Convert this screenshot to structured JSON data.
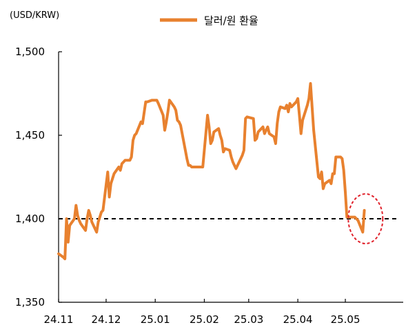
{
  "chart_data": {
    "type": "line",
    "unit_label": "(USD/KRW)",
    "legend_position": "top-center",
    "series": [
      {
        "name": "달러/원 환율",
        "color": "#E8812F",
        "points": [
          [
            "24.11.01",
            1379
          ],
          [
            "24.11.04",
            1377
          ],
          [
            "24.11.05",
            1376
          ],
          [
            "24.11.06",
            1400
          ],
          [
            "24.11.07",
            1386
          ],
          [
            "24.11.08",
            1396
          ],
          [
            "24.11.11",
            1400
          ],
          [
            "24.11.12",
            1408
          ],
          [
            "24.11.13",
            1402
          ],
          [
            "24.11.14",
            1399
          ],
          [
            "24.11.15",
            1397
          ],
          [
            "24.11.18",
            1393
          ],
          [
            "24.11.19",
            1400
          ],
          [
            "24.11.20",
            1405
          ],
          [
            "24.11.21",
            1402
          ],
          [
            "24.11.22",
            1398
          ],
          [
            "24.11.25",
            1392
          ],
          [
            "24.11.26",
            1398
          ],
          [
            "24.11.27",
            1401
          ],
          [
            "24.11.28",
            1404
          ],
          [
            "24.11.29",
            1405
          ],
          [
            "24.12.02",
            1428
          ],
          [
            "24.12.03",
            1413
          ],
          [
            "24.12.04",
            1421
          ],
          [
            "24.12.05",
            1424
          ],
          [
            "24.12.06",
            1427
          ],
          [
            "24.12.09",
            1431
          ],
          [
            "24.12.10",
            1429
          ],
          [
            "24.12.11",
            1433
          ],
          [
            "24.12.12",
            1434
          ],
          [
            "24.12.13",
            1435
          ],
          [
            "24.12.16",
            1435
          ],
          [
            "24.12.17",
            1437
          ],
          [
            "24.12.18",
            1447
          ],
          [
            "24.12.19",
            1450
          ],
          [
            "24.12.20",
            1451
          ],
          [
            "24.12.23",
            1458
          ],
          [
            "24.12.24",
            1457
          ],
          [
            "24.12.26",
            1470
          ],
          [
            "24.12.27",
            1470
          ],
          [
            "24.12.30",
            1471
          ],
          [
            "25.01.02",
            1471
          ],
          [
            "25.01.03",
            1469
          ],
          [
            "25.01.06",
            1462
          ],
          [
            "25.01.07",
            1453
          ],
          [
            "25.01.08",
            1458
          ],
          [
            "25.01.09",
            1464
          ],
          [
            "25.01.10",
            1471
          ],
          [
            "25.01.13",
            1467
          ],
          [
            "25.01.14",
            1465
          ],
          [
            "25.01.15",
            1459
          ],
          [
            "25.01.16",
            1458
          ],
          [
            "25.01.17",
            1456
          ],
          [
            "25.01.20",
            1441
          ],
          [
            "25.01.21",
            1436
          ],
          [
            "25.01.22",
            1432
          ],
          [
            "25.01.23",
            1432
          ],
          [
            "25.01.24",
            1431
          ],
          [
            "25.01.31",
            1431
          ],
          [
            "25.02.03",
            1462
          ],
          [
            "25.02.04",
            1455
          ],
          [
            "25.02.05",
            1445
          ],
          [
            "25.02.06",
            1447
          ],
          [
            "25.02.07",
            1452
          ],
          [
            "25.02.10",
            1454
          ],
          [
            "25.02.11",
            1450
          ],
          [
            "25.02.12",
            1447
          ],
          [
            "25.02.13",
            1440
          ],
          [
            "25.02.14",
            1442
          ],
          [
            "25.02.17",
            1441
          ],
          [
            "25.02.18",
            1437
          ],
          [
            "25.02.19",
            1434
          ],
          [
            "25.02.20",
            1432
          ],
          [
            "25.02.21",
            1430
          ],
          [
            "25.02.24",
            1436
          ],
          [
            "25.02.25",
            1438
          ],
          [
            "25.02.26",
            1441
          ],
          [
            "25.02.27",
            1460
          ],
          [
            "25.02.28",
            1461
          ],
          [
            "25.03.04",
            1460
          ],
          [
            "25.03.05",
            1447
          ],
          [
            "25.03.06",
            1448
          ],
          [
            "25.03.07",
            1452
          ],
          [
            "25.03.10",
            1455
          ],
          [
            "25.03.11",
            1451
          ],
          [
            "25.03.12",
            1453
          ],
          [
            "25.03.13",
            1455
          ],
          [
            "25.03.14",
            1451
          ],
          [
            "25.03.17",
            1449
          ],
          [
            "25.03.18",
            1445
          ],
          [
            "25.03.19",
            1457
          ],
          [
            "25.03.20",
            1464
          ],
          [
            "25.03.21",
            1467
          ],
          [
            "25.03.24",
            1466
          ],
          [
            "25.03.25",
            1468
          ],
          [
            "25.03.26",
            1464
          ],
          [
            "25.03.27",
            1469
          ],
          [
            "25.03.28",
            1467
          ],
          [
            "25.03.31",
            1470
          ],
          [
            "25.04.01",
            1472
          ],
          [
            "25.04.02",
            1462
          ],
          [
            "25.04.03",
            1451
          ],
          [
            "25.04.04",
            1459
          ],
          [
            "25.04.07",
            1468
          ],
          [
            "25.04.08",
            1472
          ],
          [
            "25.04.09",
            1481
          ],
          [
            "25.04.10",
            1467
          ],
          [
            "25.04.11",
            1453
          ],
          [
            "25.04.14",
            1425
          ],
          [
            "25.04.15",
            1424
          ],
          [
            "25.04.16",
            1428
          ],
          [
            "25.04.17",
            1418
          ],
          [
            "25.04.18",
            1421
          ],
          [
            "25.04.21",
            1423
          ],
          [
            "25.04.22",
            1421
          ],
          [
            "25.04.23",
            1427
          ],
          [
            "25.04.24",
            1427
          ],
          [
            "25.04.25",
            1437
          ],
          [
            "25.04.28",
            1437
          ],
          [
            "25.04.29",
            1436
          ],
          [
            "25.04.30",
            1429
          ],
          [
            "25.05.01",
            1416
          ],
          [
            "25.05.02",
            1401
          ],
          [
            "25.05.07",
            1401
          ],
          [
            "25.05.08",
            1400
          ],
          [
            "25.05.09",
            1399
          ],
          [
            "25.05.12",
            1392
          ],
          [
            "25.05.13",
            1405
          ]
        ]
      }
    ],
    "x_axis": {
      "type": "date",
      "ticks": [
        "24.11",
        "24.12",
        "25.01",
        "25.02",
        "25.03",
        "25.04",
        "25.05"
      ],
      "tick_dates": [
        "24.11.01",
        "24.12.01",
        "25.01.01",
        "25.02.01",
        "25.03.01",
        "25.04.01",
        "25.05.01"
      ],
      "range": [
        "24.11.01",
        "25.05.31"
      ]
    },
    "y_axis": {
      "ylim": [
        1350,
        1500
      ],
      "ticks": [
        1500,
        1450,
        1400,
        1350
      ],
      "tick_labels": [
        "1,500",
        "1,450",
        "1,400",
        "1,350"
      ]
    },
    "reference_line": {
      "y": 1400,
      "style": "dashed",
      "color": "#000000"
    },
    "highlight": {
      "x": "25.05.12",
      "y": 1400,
      "shape": "dashed-ellipse",
      "color": "#E0202A"
    },
    "grid": false
  }
}
